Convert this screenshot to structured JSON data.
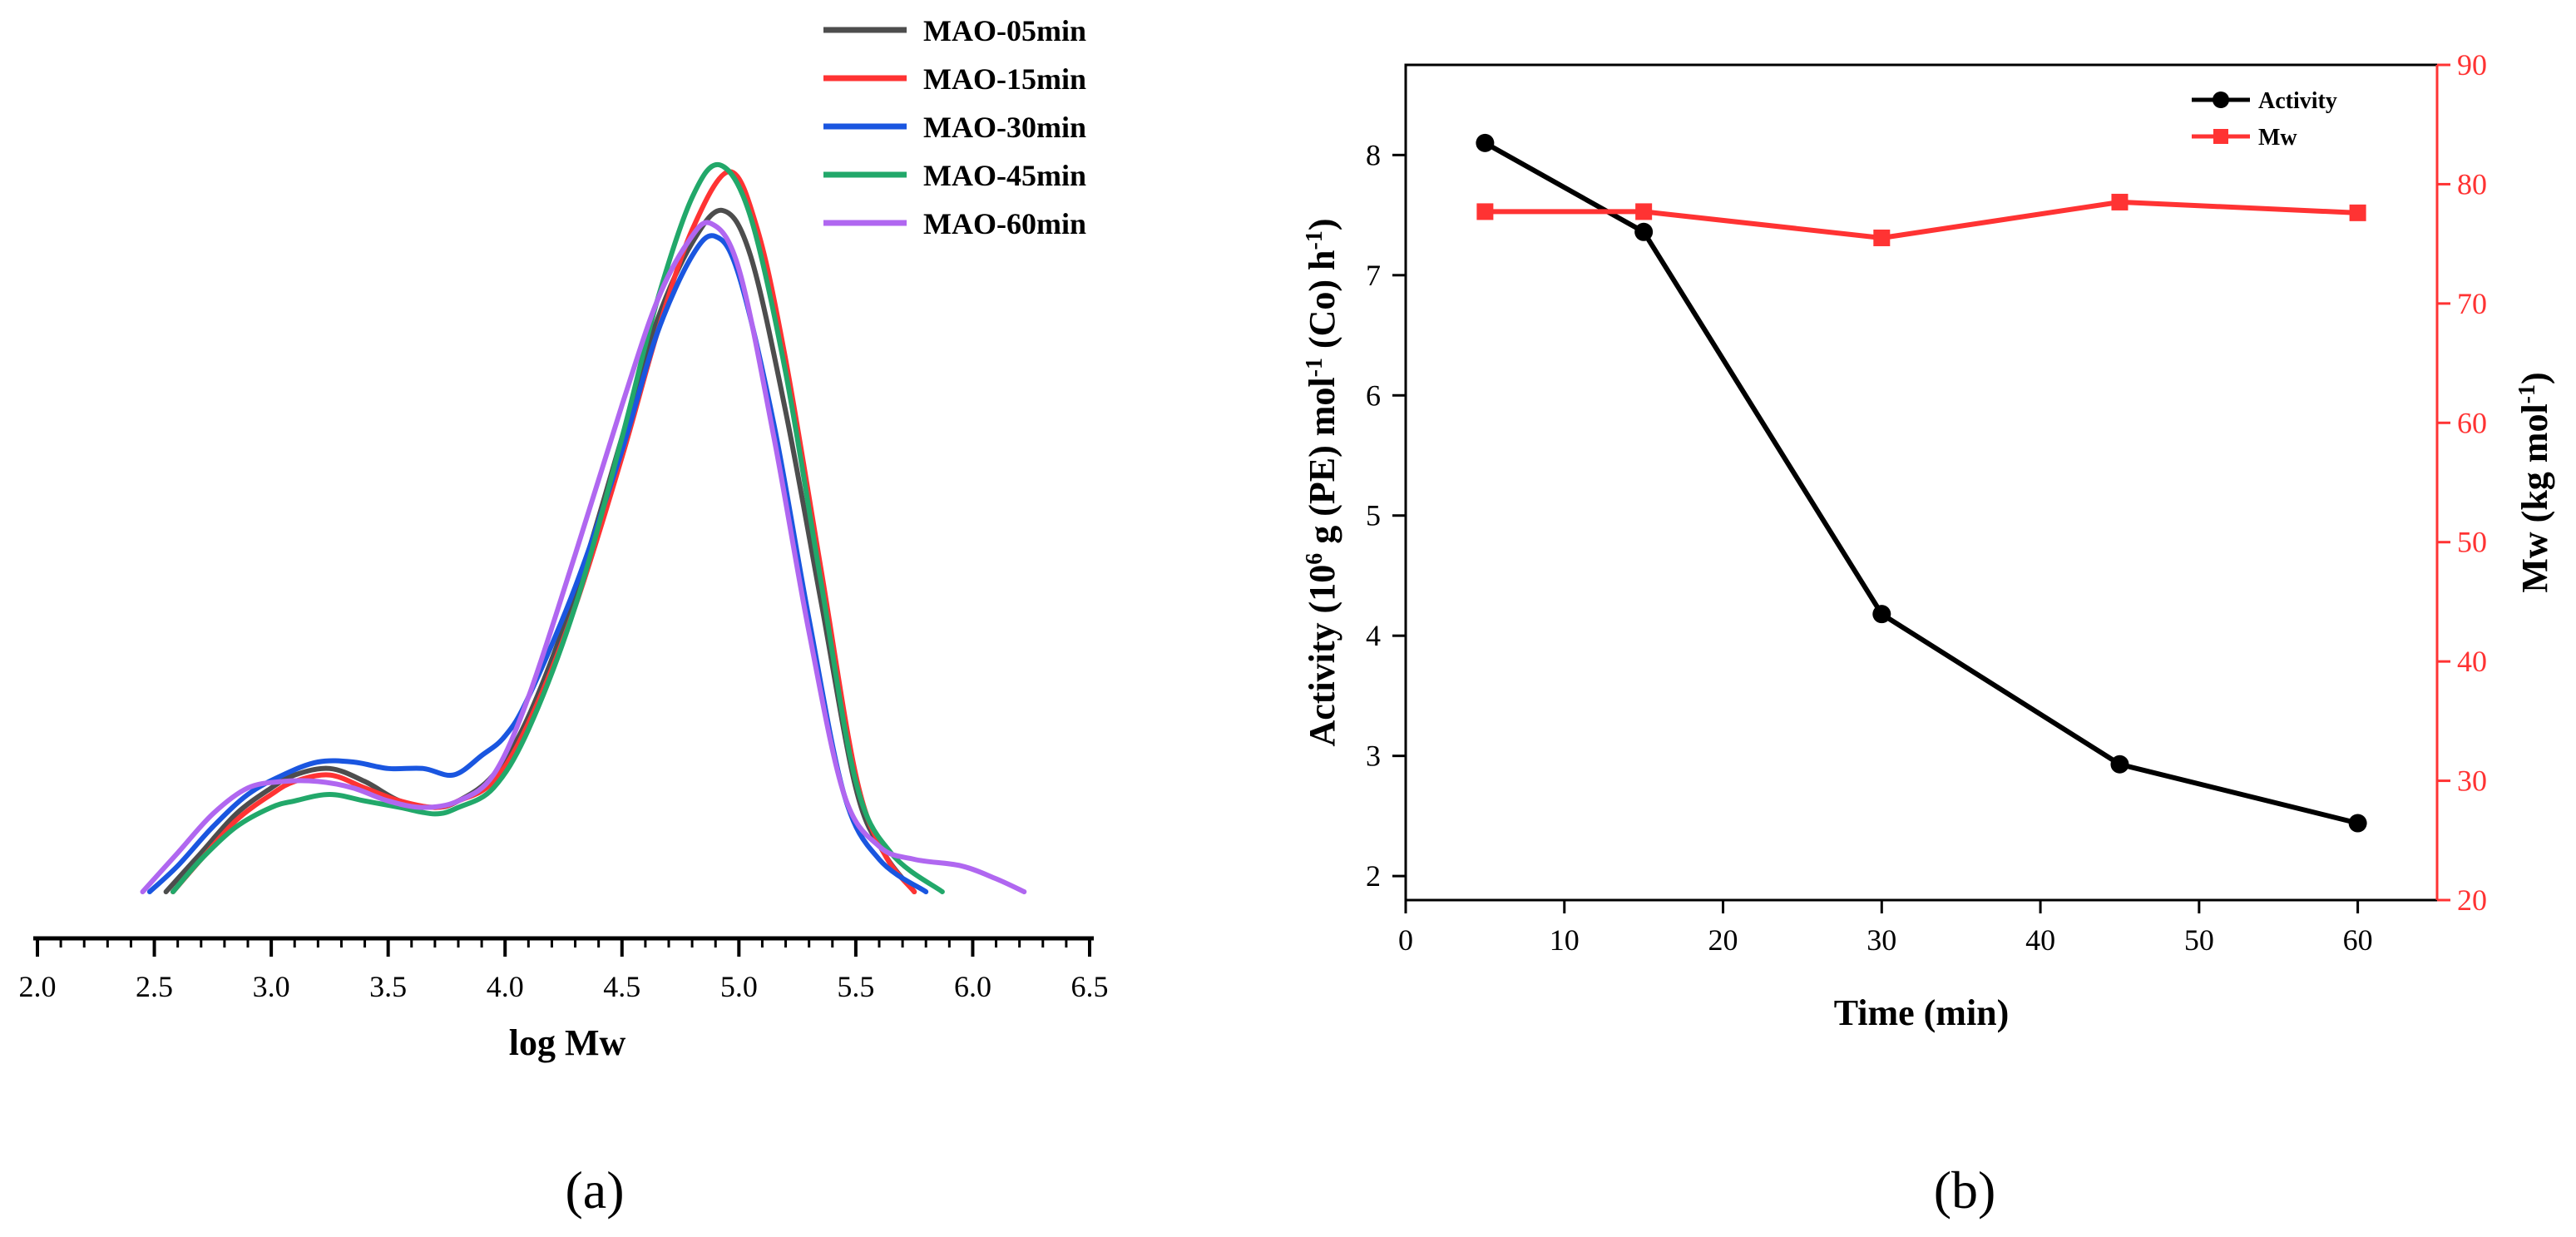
{
  "chart_data": [
    {
      "panel": "a",
      "type": "line",
      "title": "",
      "xlabel": "log Mw",
      "ylabel": "",
      "xlim": [
        2.0,
        6.5
      ],
      "xticks": [
        "2.0",
        "2.5",
        "3.0",
        "3.5",
        "4.0",
        "4.5",
        "5.0",
        "5.5",
        "6.0",
        "6.5"
      ],
      "yaxis_visible": false,
      "legend_position": "top-right",
      "series": [
        {
          "name": "MAO-05min",
          "color": "#4d4d4d",
          "x": [
            2.55,
            2.7,
            2.85,
            3.0,
            3.1,
            3.25,
            3.4,
            3.55,
            3.7,
            3.8,
            3.95,
            4.1,
            4.3,
            4.5,
            4.65,
            4.8,
            4.93,
            5.05,
            5.2,
            5.35,
            5.5,
            5.62,
            5.75
          ],
          "y": [
            0.0,
            0.06,
            0.12,
            0.16,
            0.18,
            0.19,
            0.17,
            0.14,
            0.13,
            0.14,
            0.18,
            0.27,
            0.46,
            0.7,
            0.88,
            1.0,
            1.05,
            0.98,
            0.74,
            0.45,
            0.16,
            0.06,
            0.0
          ]
        },
        {
          "name": "MAO-15min",
          "color": "#ff3333",
          "x": [
            2.58,
            2.7,
            2.85,
            3.0,
            3.1,
            3.25,
            3.4,
            3.55,
            3.7,
            3.8,
            3.95,
            4.1,
            4.3,
            4.5,
            4.65,
            4.8,
            4.96,
            5.08,
            5.2,
            5.35,
            5.5,
            5.62,
            5.75
          ],
          "y": [
            0.0,
            0.05,
            0.11,
            0.15,
            0.17,
            0.18,
            0.16,
            0.14,
            0.13,
            0.14,
            0.17,
            0.26,
            0.44,
            0.67,
            0.86,
            1.02,
            1.11,
            1.02,
            0.82,
            0.5,
            0.18,
            0.06,
            0.0
          ]
        },
        {
          "name": "MAO-30min",
          "color": "#1a56e0",
          "x": [
            2.48,
            2.6,
            2.75,
            2.9,
            3.05,
            3.2,
            3.35,
            3.5,
            3.65,
            3.78,
            3.9,
            4.0,
            4.1,
            4.3,
            4.5,
            4.65,
            4.8,
            4.9,
            5.0,
            5.15,
            5.3,
            5.45,
            5.6,
            5.8
          ],
          "y": [
            0.0,
            0.04,
            0.1,
            0.15,
            0.18,
            0.2,
            0.2,
            0.19,
            0.19,
            0.18,
            0.21,
            0.24,
            0.3,
            0.47,
            0.68,
            0.86,
            0.98,
            1.01,
            0.95,
            0.72,
            0.42,
            0.15,
            0.05,
            0.0
          ]
        },
        {
          "name": "MAO-45min",
          "color": "#22a86a",
          "x": [
            2.58,
            2.7,
            2.85,
            3.0,
            3.1,
            3.25,
            3.4,
            3.55,
            3.7,
            3.8,
            3.95,
            4.1,
            4.3,
            4.5,
            4.65,
            4.8,
            4.92,
            5.05,
            5.2,
            5.35,
            5.5,
            5.65,
            5.87
          ],
          "y": [
            0.0,
            0.05,
            0.1,
            0.13,
            0.14,
            0.15,
            0.14,
            0.13,
            0.12,
            0.13,
            0.16,
            0.25,
            0.44,
            0.7,
            0.91,
            1.07,
            1.12,
            1.04,
            0.8,
            0.48,
            0.17,
            0.06,
            0.0
          ]
        },
        {
          "name": "MAO-60min",
          "color": "#b067f0",
          "x": [
            2.45,
            2.6,
            2.75,
            2.9,
            3.05,
            3.2,
            3.35,
            3.5,
            3.65,
            3.8,
            3.95,
            4.1,
            4.3,
            4.5,
            4.65,
            4.78,
            4.88,
            5.0,
            5.15,
            5.3,
            5.45,
            5.6,
            5.75,
            5.95,
            6.1,
            6.22
          ],
          "y": [
            0.0,
            0.06,
            0.12,
            0.16,
            0.17,
            0.17,
            0.16,
            0.14,
            0.13,
            0.14,
            0.18,
            0.3,
            0.52,
            0.75,
            0.91,
            1.0,
            1.03,
            0.96,
            0.7,
            0.4,
            0.15,
            0.07,
            0.05,
            0.04,
            0.02,
            0.0
          ]
        }
      ]
    },
    {
      "panel": "b",
      "type": "line",
      "title": "",
      "xlabel": "Time (min)",
      "ylabel": "Activity (10⁶ g (PE) mol⁻¹ (Co) h⁻¹)",
      "y2label": "Mw (kg mol⁻¹)",
      "xlim": [
        0,
        65
      ],
      "ylim": [
        1.8,
        8.75
      ],
      "y2lim": [
        20,
        90
      ],
      "xticks": [
        "0",
        "10",
        "20",
        "30",
        "40",
        "50",
        "60"
      ],
      "yticks": [
        "2",
        "3",
        "4",
        "5",
        "6",
        "7",
        "8"
      ],
      "y2ticks": [
        "20",
        "30",
        "40",
        "50",
        "60",
        "70",
        "80",
        "90"
      ],
      "legend_position": "top-right",
      "series": [
        {
          "name": "Activity",
          "axis": "left",
          "color": "#000000",
          "marker": "circle",
          "x": [
            5,
            15,
            30,
            45,
            60
          ],
          "y": [
            8.1,
            7.36,
            4.18,
            2.93,
            2.44
          ]
        },
        {
          "name": "Mw",
          "axis": "right",
          "color": "#ff3333",
          "marker": "square",
          "x": [
            5,
            15,
            30,
            45,
            60
          ],
          "y": [
            77.7,
            77.7,
            75.5,
            78.5,
            77.6
          ]
        }
      ]
    }
  ],
  "panel_labels": {
    "a": "(a)",
    "b": "(b)"
  },
  "text": {
    "b_ylabel_main": "Activity (10",
    "b_ylabel_sup1": "6",
    "b_ylabel_mid": " g (PE) mol",
    "b_ylabel_sup2": "-1",
    "b_ylabel_mid2": " (Co) h",
    "b_ylabel_sup3": "-1",
    "b_ylabel_end": ")",
    "b_y2label_main": "Mw (kg mol",
    "b_y2label_sup": "-1",
    "b_y2label_end": ")"
  }
}
